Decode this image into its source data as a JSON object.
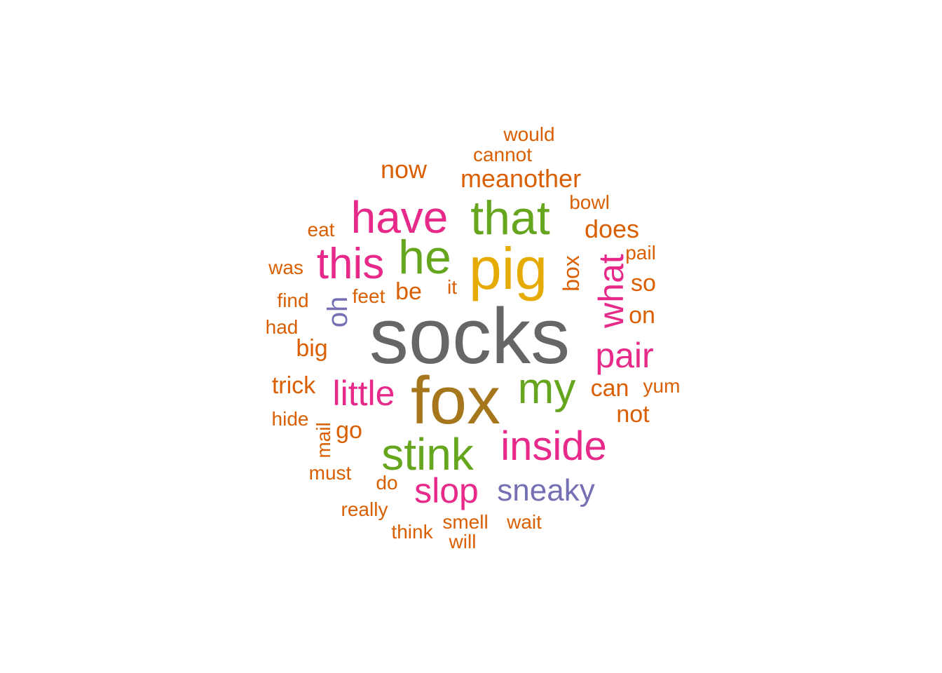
{
  "palette": {
    "orange": "#d95f02",
    "pink": "#e7298a",
    "green": "#66a61e",
    "gold": "#e6ab02",
    "grey": "#666666",
    "brown": "#a6761d",
    "purple": "#7570b3"
  },
  "words": [
    {
      "text": "socks",
      "color": "grey",
      "freq": 10
    },
    {
      "text": "fox",
      "color": "brown",
      "freq": 9
    },
    {
      "text": "pig",
      "color": "gold",
      "freq": 8
    },
    {
      "text": "that",
      "color": "green",
      "freq": 6
    },
    {
      "text": "have",
      "color": "pink",
      "freq": 6
    },
    {
      "text": "he",
      "color": "green",
      "freq": 6
    },
    {
      "text": "this",
      "color": "pink",
      "freq": 5
    },
    {
      "text": "my",
      "color": "green",
      "freq": 5
    },
    {
      "text": "stink",
      "color": "green",
      "freq": 6
    },
    {
      "text": "inside",
      "color": "pink",
      "freq": 5
    },
    {
      "text": "what",
      "color": "pink",
      "freq": 4
    },
    {
      "text": "pair",
      "color": "pink",
      "freq": 4
    },
    {
      "text": "little",
      "color": "pink",
      "freq": 4
    },
    {
      "text": "slop",
      "color": "pink",
      "freq": 4
    },
    {
      "text": "sneaky",
      "color": "purple",
      "freq": 3
    },
    {
      "text": "oh",
      "color": "purple",
      "freq": 3
    },
    {
      "text": "meanother",
      "color": "orange",
      "freq": 2
    },
    {
      "text": "now",
      "color": "orange",
      "freq": 2
    },
    {
      "text": "does",
      "color": "orange",
      "freq": 2
    },
    {
      "text": "box",
      "color": "orange",
      "freq": 2
    },
    {
      "text": "so",
      "color": "orange",
      "freq": 2
    },
    {
      "text": "on",
      "color": "orange",
      "freq": 2
    },
    {
      "text": "be",
      "color": "orange",
      "freq": 2
    },
    {
      "text": "big",
      "color": "orange",
      "freq": 2
    },
    {
      "text": "trick",
      "color": "orange",
      "freq": 2
    },
    {
      "text": "can",
      "color": "orange",
      "freq": 2
    },
    {
      "text": "not",
      "color": "orange",
      "freq": 2
    },
    {
      "text": "go",
      "color": "orange",
      "freq": 2
    },
    {
      "text": "would",
      "color": "orange",
      "freq": 1
    },
    {
      "text": "cannot",
      "color": "orange",
      "freq": 1
    },
    {
      "text": "bowl",
      "color": "orange",
      "freq": 1
    },
    {
      "text": "eat",
      "color": "orange",
      "freq": 1
    },
    {
      "text": "pail",
      "color": "orange",
      "freq": 1
    },
    {
      "text": "was",
      "color": "orange",
      "freq": 1
    },
    {
      "text": "find",
      "color": "orange",
      "freq": 1
    },
    {
      "text": "feet",
      "color": "orange",
      "freq": 1
    },
    {
      "text": "it",
      "color": "orange",
      "freq": 1
    },
    {
      "text": "had",
      "color": "orange",
      "freq": 1
    },
    {
      "text": "yum",
      "color": "orange",
      "freq": 1
    },
    {
      "text": "hide",
      "color": "orange",
      "freq": 1
    },
    {
      "text": "mail",
      "color": "orange",
      "freq": 1
    },
    {
      "text": "must",
      "color": "orange",
      "freq": 1
    },
    {
      "text": "do",
      "color": "orange",
      "freq": 1
    },
    {
      "text": "really",
      "color": "orange",
      "freq": 1
    },
    {
      "text": "smell",
      "color": "orange",
      "freq": 1
    },
    {
      "text": "wait",
      "color": "orange",
      "freq": 1
    },
    {
      "text": "think",
      "color": "orange",
      "freq": 1
    },
    {
      "text": "will",
      "color": "orange",
      "freq": 1
    }
  ]
}
